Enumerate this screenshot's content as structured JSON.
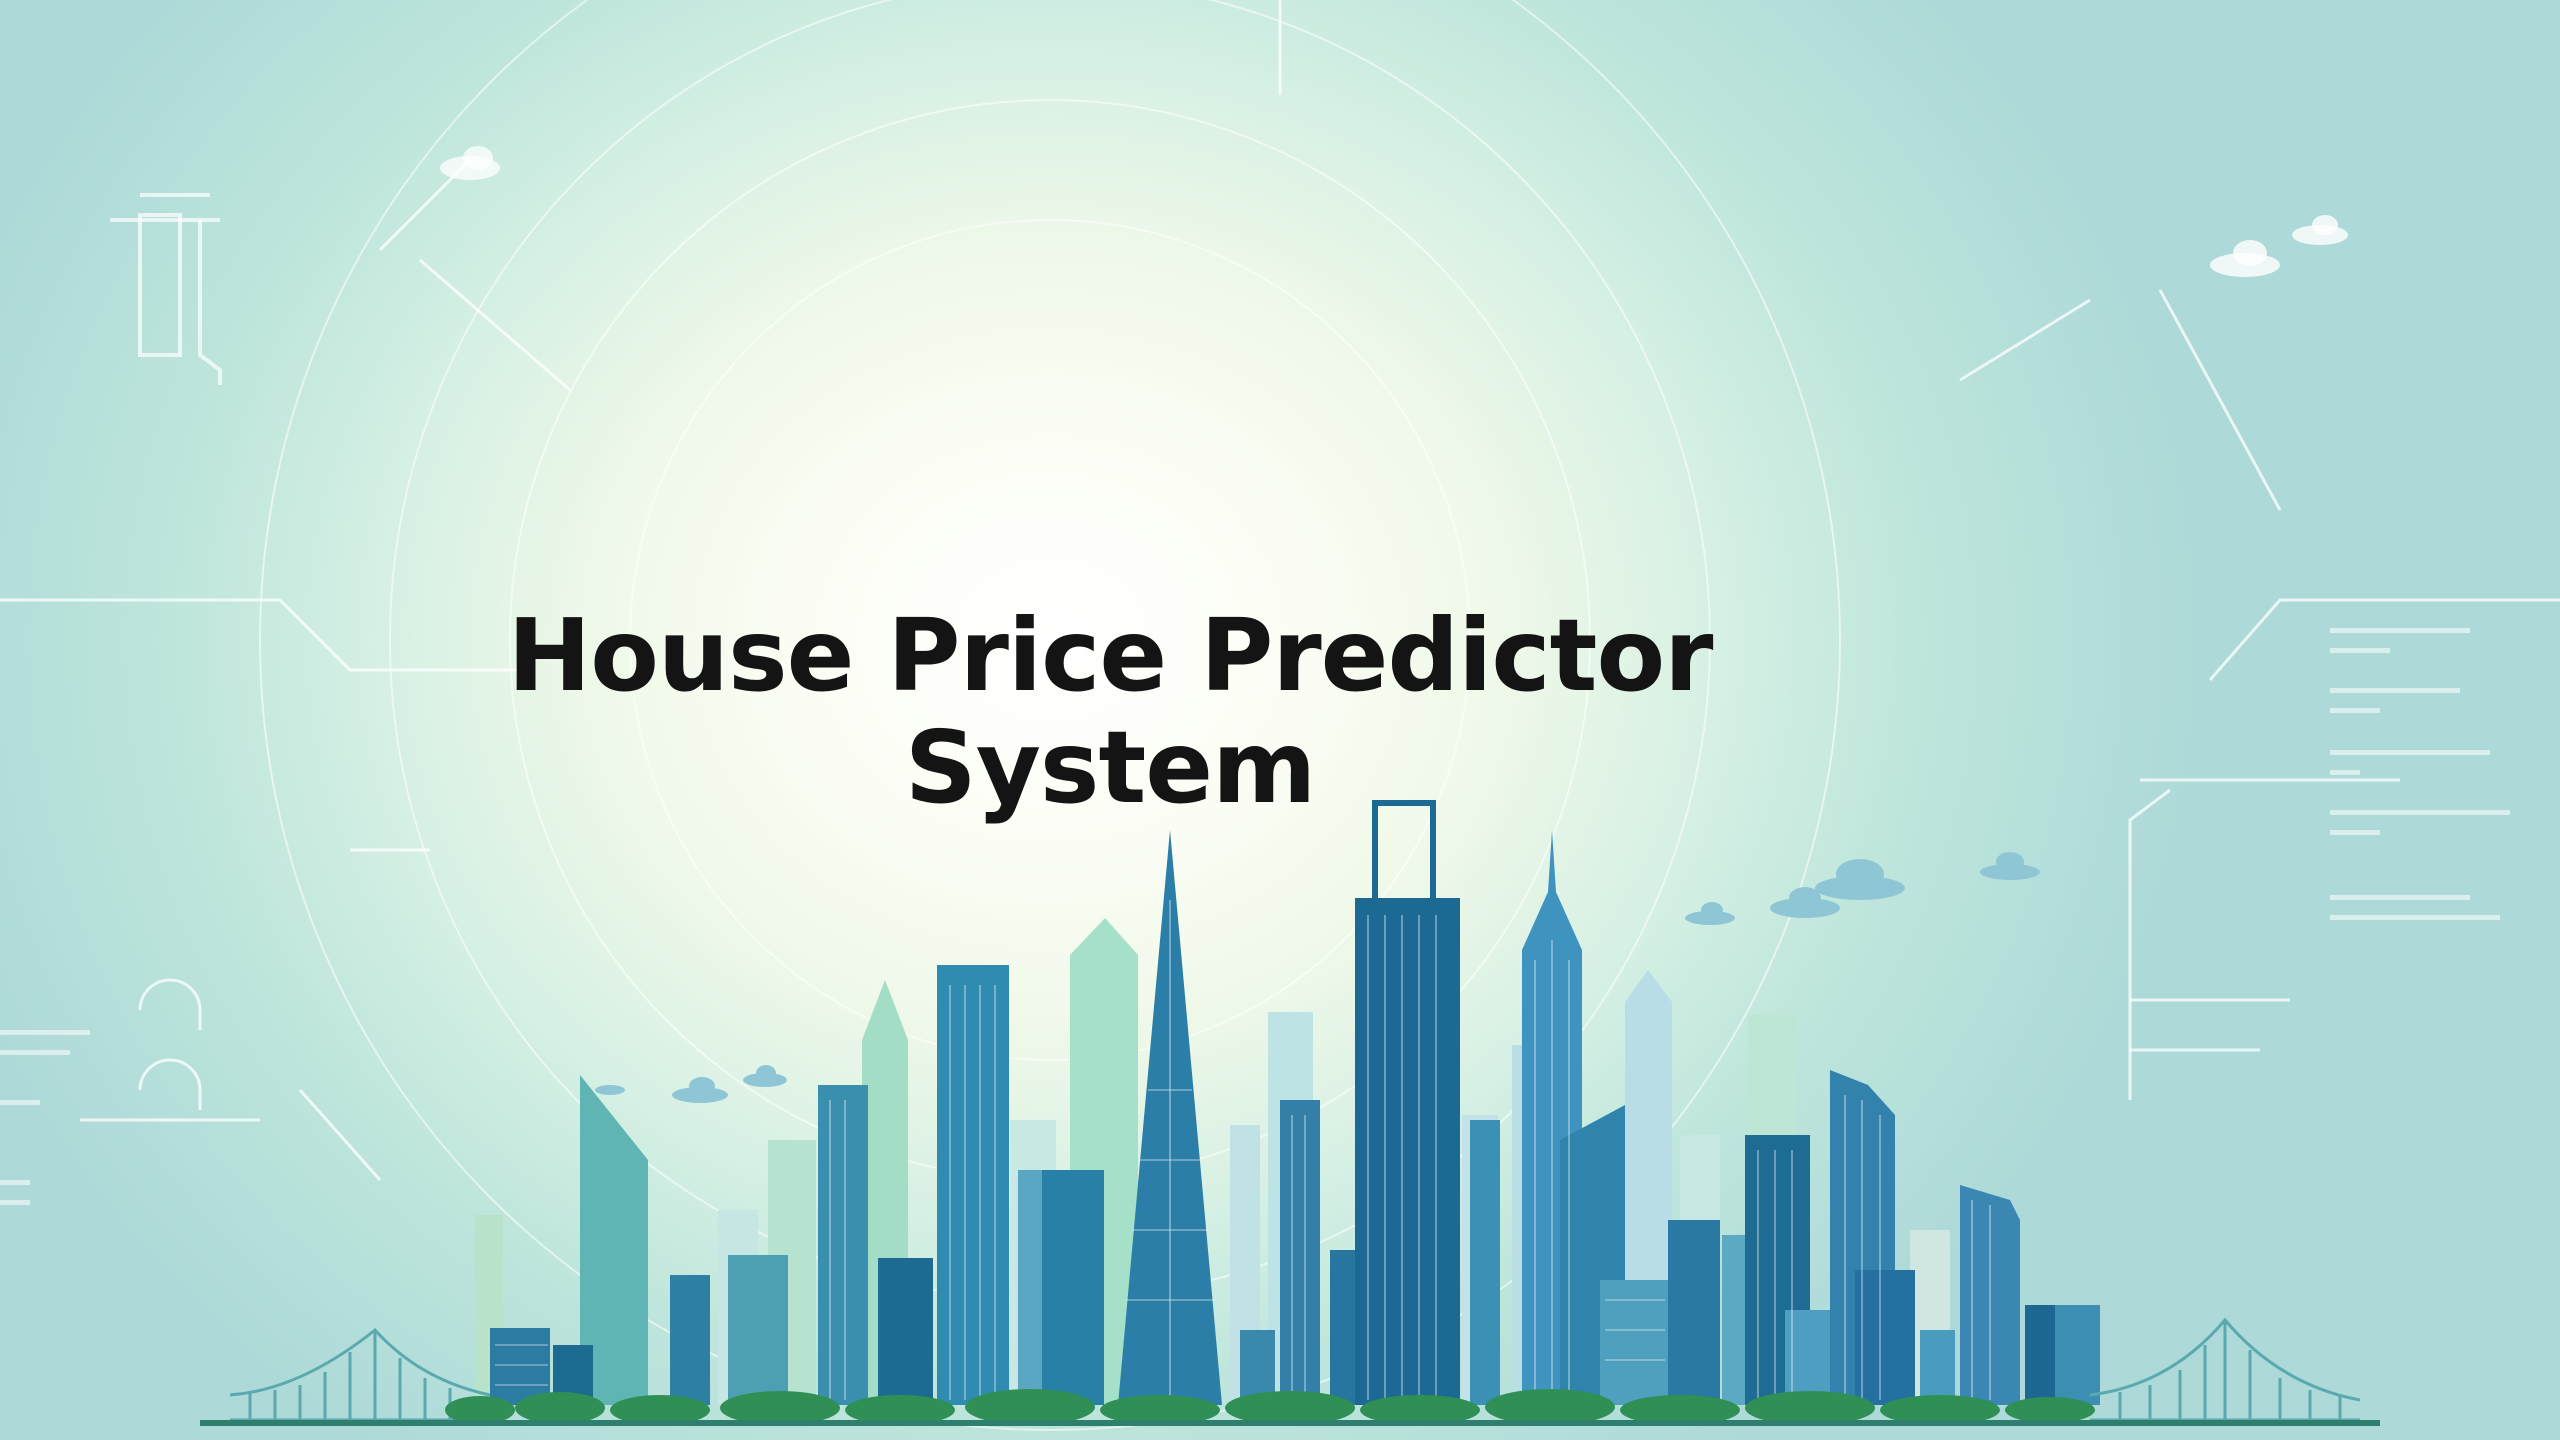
{
  "hero": {
    "title_line1": "House Price Predictor",
    "title_line2": "System"
  },
  "colors": {
    "title": "#141414",
    "teal_light": "#9fdcc6",
    "teal": "#4aa8a8",
    "blue": "#3d86b0",
    "navy": "#1e5e86",
    "green": "#2f8f55"
  }
}
